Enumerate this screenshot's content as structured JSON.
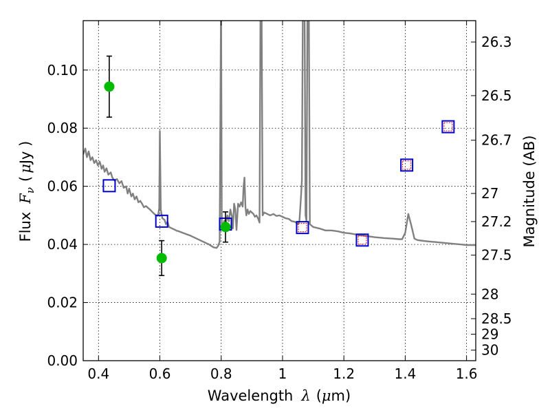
{
  "chart_data": {
    "type": "scatter",
    "xlim": [
      0.35,
      1.63
    ],
    "ylim": [
      0.0,
      0.117
    ],
    "grid": true,
    "x_ticks": [
      0.4,
      0.6,
      0.8,
      1.0,
      1.2,
      1.4,
      1.6
    ],
    "x_tick_labels": [
      "0.4",
      "0.6",
      "0.8",
      "1",
      "1.2",
      "1.4",
      "1.6"
    ],
    "y_ticks": [
      0.0,
      0.02,
      0.04,
      0.06,
      0.08,
      0.1
    ],
    "y_tick_labels": [
      "0.00",
      "0.02",
      "0.04",
      "0.06",
      "0.08",
      "0.10"
    ],
    "right_axis": {
      "label": "Magnitude (AB)",
      "ticks": [
        "26.3",
        "26.5",
        "26.7",
        "27",
        "27.2",
        "27.5",
        "28",
        "28.5",
        "29",
        "30"
      ]
    },
    "xlabel_text": "Wavelength",
    "xlabel_symbol": "λ",
    "xlabel_unit_open": "(",
    "xlabel_unit_mu": "μ",
    "xlabel_unit_rest": "m)",
    "ylabel_text": "Flux",
    "ylabel_symbol_base": "F",
    "ylabel_symbol_sub": "ν",
    "ylabel_unit_open": "(",
    "ylabel_unit_mu": "μ",
    "ylabel_unit_rest": "Jy )",
    "colors": {
      "template": "#808080",
      "observed": "#00bb00",
      "model_outer": "#0000cc",
      "model_inner": "#dd0000",
      "errorbar": "#000000"
    },
    "observed_points": [
      {
        "x": 0.435,
        "y": 0.0943,
        "err": 0.0105
      },
      {
        "x": 0.606,
        "y": 0.0353,
        "err": 0.006
      },
      {
        "x": 0.814,
        "y": 0.046,
        "err": 0.0052
      }
    ],
    "model_points": [
      {
        "x": 0.435,
        "y": 0.0602,
        "inner": false
      },
      {
        "x": 0.606,
        "y": 0.048,
        "inner": false
      },
      {
        "x": 0.814,
        "y": 0.047,
        "inner": false
      },
      {
        "x": 1.065,
        "y": 0.0458,
        "inner": true
      },
      {
        "x": 1.26,
        "y": 0.0415,
        "inner": true
      },
      {
        "x": 1.405,
        "y": 0.0673,
        "inner": true
      },
      {
        "x": 1.54,
        "y": 0.0805,
        "inner": true
      }
    ],
    "template_curve": [
      [
        0.35,
        0.071
      ],
      [
        0.357,
        0.073
      ],
      [
        0.362,
        0.07
      ],
      [
        0.368,
        0.072
      ],
      [
        0.374,
        0.069
      ],
      [
        0.38,
        0.07
      ],
      [
        0.386,
        0.068
      ],
      [
        0.392,
        0.069
      ],
      [
        0.398,
        0.0672
      ],
      [
        0.404,
        0.0685
      ],
      [
        0.41,
        0.066
      ],
      [
        0.415,
        0.0672
      ],
      [
        0.42,
        0.065
      ],
      [
        0.426,
        0.0662
      ],
      [
        0.432,
        0.064
      ],
      [
        0.44,
        0.0648
      ],
      [
        0.445,
        0.063
      ],
      [
        0.452,
        0.062
      ],
      [
        0.46,
        0.0625
      ],
      [
        0.468,
        0.061
      ],
      [
        0.475,
        0.0618
      ],
      [
        0.482,
        0.0595
      ],
      [
        0.49,
        0.06
      ],
      [
        0.495,
        0.0575
      ],
      [
        0.5,
        0.0592
      ],
      [
        0.507,
        0.0565
      ],
      [
        0.512,
        0.0575
      ],
      [
        0.518,
        0.0555
      ],
      [
        0.524,
        0.0565
      ],
      [
        0.53,
        0.0545
      ],
      [
        0.536,
        0.055
      ],
      [
        0.542,
        0.054
      ],
      [
        0.548,
        0.0528
      ],
      [
        0.555,
        0.0532
      ],
      [
        0.562,
        0.0525
      ],
      [
        0.568,
        0.052
      ],
      [
        0.575,
        0.0512
      ],
      [
        0.582,
        0.0505
      ],
      [
        0.588,
        0.05
      ],
      [
        0.594,
        0.0498
      ],
      [
        0.598,
        0.0525
      ],
      [
        0.6,
        0.079
      ],
      [
        0.603,
        0.052
      ],
      [
        0.608,
        0.049
      ],
      [
        0.615,
        0.0485
      ],
      [
        0.62,
        0.047
      ],
      [
        0.625,
        0.0478
      ],
      [
        0.63,
        0.046
      ],
      [
        0.64,
        0.0455
      ],
      [
        0.65,
        0.045
      ],
      [
        0.655,
        0.0447
      ],
      [
        0.66,
        0.0446
      ],
      [
        0.68,
        0.0438
      ],
      [
        0.7,
        0.043
      ],
      [
        0.72,
        0.042
      ],
      [
        0.74,
        0.041
      ],
      [
        0.76,
        0.04
      ],
      [
        0.775,
        0.039
      ],
      [
        0.785,
        0.0388
      ],
      [
        0.79,
        0.0395
      ],
      [
        0.795,
        0.041
      ],
      [
        0.799,
        0.117
      ],
      [
        0.8,
        0.117
      ],
      [
        0.802,
        0.047
      ],
      [
        0.806,
        0.0465
      ],
      [
        0.81,
        0.0482
      ],
      [
        0.815,
        0.047
      ],
      [
        0.82,
        0.05
      ],
      [
        0.825,
        0.048
      ],
      [
        0.83,
        0.052
      ],
      [
        0.835,
        0.0495
      ],
      [
        0.838,
        0.0455
      ],
      [
        0.842,
        0.054
      ],
      [
        0.846,
        0.052
      ],
      [
        0.85,
        0.045
      ],
      [
        0.855,
        0.054
      ],
      [
        0.86,
        0.053
      ],
      [
        0.865,
        0.0545
      ],
      [
        0.87,
        0.053
      ],
      [
        0.873,
        0.06
      ],
      [
        0.876,
        0.063
      ],
      [
        0.879,
        0.053
      ],
      [
        0.882,
        0.05
      ],
      [
        0.886,
        0.052
      ],
      [
        0.89,
        0.0505
      ],
      [
        0.895,
        0.0515
      ],
      [
        0.9,
        0.051
      ],
      [
        0.905,
        0.0505
      ],
      [
        0.91,
        0.0495
      ],
      [
        0.915,
        0.05
      ],
      [
        0.92,
        0.049
      ],
      [
        0.925,
        0.0475
      ],
      [
        0.928,
        0.117
      ],
      [
        0.932,
        0.117
      ],
      [
        0.935,
        0.05
      ],
      [
        0.94,
        0.051
      ],
      [
        0.95,
        0.0505
      ],
      [
        0.96,
        0.05
      ],
      [
        0.97,
        0.0505
      ],
      [
        0.98,
        0.0498
      ],
      [
        0.99,
        0.05
      ],
      [
        1.0,
        0.0495
      ],
      [
        1.01,
        0.049
      ],
      [
        1.02,
        0.0488
      ],
      [
        1.03,
        0.048
      ],
      [
        1.04,
        0.0478
      ],
      [
        1.05,
        0.047
      ],
      [
        1.055,
        0.048
      ],
      [
        1.06,
        0.056
      ],
      [
        1.063,
        0.062
      ],
      [
        1.066,
        0.117
      ],
      [
        1.072,
        0.117
      ],
      [
        1.075,
        0.05
      ],
      [
        1.078,
        0.048
      ],
      [
        1.081,
        0.117
      ],
      [
        1.086,
        0.117
      ],
      [
        1.089,
        0.047
      ],
      [
        1.1,
        0.046
      ],
      [
        1.12,
        0.0455
      ],
      [
        1.14,
        0.0448
      ],
      [
        1.16,
        0.0448
      ],
      [
        1.18,
        0.0445
      ],
      [
        1.2,
        0.044
      ],
      [
        1.22,
        0.0438
      ],
      [
        1.25,
        0.0432
      ],
      [
        1.28,
        0.0428
      ],
      [
        1.3,
        0.0425
      ],
      [
        1.33,
        0.0422
      ],
      [
        1.36,
        0.042
      ],
      [
        1.38,
        0.0418
      ],
      [
        1.39,
        0.0418
      ],
      [
        1.4,
        0.044
      ],
      [
        1.41,
        0.0505
      ],
      [
        1.42,
        0.0465
      ],
      [
        1.43,
        0.042
      ],
      [
        1.44,
        0.0415
      ],
      [
        1.46,
        0.0412
      ],
      [
        1.48,
        0.041
      ],
      [
        1.5,
        0.0408
      ],
      [
        1.52,
        0.0406
      ],
      [
        1.54,
        0.0404
      ],
      [
        1.56,
        0.0402
      ],
      [
        1.58,
        0.04
      ],
      [
        1.6,
        0.0398
      ],
      [
        1.63,
        0.0398
      ]
    ]
  }
}
